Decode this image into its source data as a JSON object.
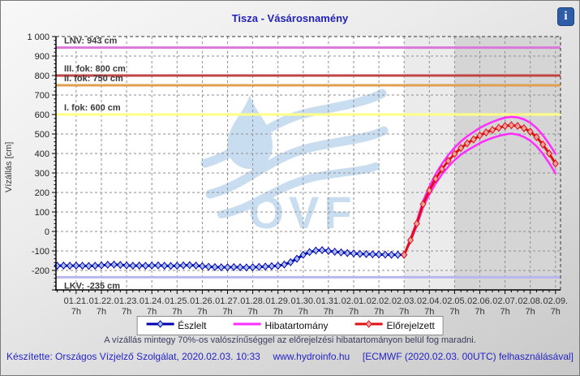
{
  "title": "Tisza - Vásárosnamény",
  "info_button": {
    "glyph": "i"
  },
  "note": "A vízállás mintegy 70%-os valószínűséggel az előrejelzési hibatartományon belül fog maradni.",
  "footer": {
    "left": "Készítette: Országos Vízjelző Szolgálat, 2020.02.03. 10:33",
    "center": "www.hydroinfo.hu",
    "right": "[ECMWF (2020.02.03. 00UTC) felhasználásával]"
  },
  "legend": [
    {
      "label": "Észlelt",
      "color": "#0000b4",
      "marker": true,
      "marker_fill": "#a8c0e8"
    },
    {
      "label": "Hibatartomány",
      "color": "#ff2bff",
      "marker": false,
      "marker_fill": ""
    },
    {
      "label": "Előrejelzett",
      "color": "#dd1111",
      "marker": true,
      "marker_fill": "#f4a0a0"
    }
  ],
  "watermark_text": "OVF",
  "colors": {
    "grid": "#8f8f8f",
    "plot_bg": "#ffffff",
    "title_blue": "#2222bb",
    "footer_blue": "#2424c8"
  },
  "chart_data": {
    "type": "line",
    "title": "Tisza - Vásárosnamény",
    "ylabel": "Vízállás [cm]",
    "x_unit": "days relative to 01.21. 07h, 6-hour sampling",
    "x_range": [
      -0.8,
      19.2
    ],
    "y_range": [
      -300,
      1000
    ],
    "grid": true,
    "y_ticks": {
      "values": [
        1000,
        900,
        800,
        700,
        600,
        500,
        400,
        300,
        200,
        100,
        0,
        -100,
        -200
      ],
      "labels": [
        "1 000",
        "900",
        "800",
        "700",
        "600",
        "500",
        "400",
        "300",
        "200",
        "100",
        "0",
        "-100",
        "-200"
      ]
    },
    "day_labels": [
      "01.21.",
      "01.22.",
      "01.23.",
      "01.24.",
      "01.25.",
      "01.26.",
      "01.27.",
      "01.28.",
      "01.29.",
      "01.30.",
      "01.31.",
      "02.01.",
      "02.02.",
      "02.03.",
      "02.04.",
      "02.05.",
      "02.06.",
      "02.07.",
      "02.08.",
      "02.09."
    ],
    "hour_sublabel": "7h",
    "regions": [
      {
        "name": "forecast-near",
        "from_day": 13,
        "to_day": 15,
        "color": "#ebebeb"
      },
      {
        "name": "forecast-far",
        "from_day": 15,
        "to_day": 19.2,
        "color": "#d5d5d5"
      }
    ],
    "reference_lines": [
      {
        "label": "LNV: 943 cm",
        "value": 943,
        "color": "#d878d8",
        "label_below": false
      },
      {
        "label": "III. fok: 800 cm",
        "value": 800,
        "color": "#c24545",
        "label_below": false
      },
      {
        "label": "II. fok: 750 cm",
        "value": 750,
        "color": "#dfa052",
        "label_below": false
      },
      {
        "label": "I. fok: 600 cm",
        "value": 600,
        "color": "#ffff85",
        "label_below": false
      },
      {
        "label": "LKV: -235 cm",
        "value": -235,
        "color": "#b7b7ee",
        "label_below": true
      }
    ],
    "series": [
      {
        "name": "Észlelt",
        "color": "#0000b4",
        "width": 3,
        "marker": true,
        "marker_fill": "#a8c0e8",
        "start_day": -0.75,
        "step_days": 0.25,
        "values": [
          -176,
          -175,
          -176,
          -175,
          -176,
          -177,
          -176,
          -174,
          -171,
          -170,
          -172,
          -174,
          -176,
          -175,
          -176,
          -175,
          -174,
          -176,
          -177,
          -176,
          -174,
          -173,
          -175,
          -178,
          -181,
          -183,
          -184,
          -184,
          -183,
          -184,
          -185,
          -184,
          -182,
          -180,
          -178,
          -176,
          -170,
          -158,
          -140,
          -120,
          -106,
          -98,
          -96,
          -100,
          -104,
          -108,
          -111,
          -113,
          -115,
          -116,
          -117,
          -118,
          -119,
          -120,
          -120,
          -120
        ]
      },
      {
        "name": "Hibatartomány felső",
        "color": "#ff2bff",
        "width": 2.5,
        "marker": false,
        "marker_fill": "",
        "start_day": 13,
        "step_days": 0.25,
        "values": [
          -120,
          -39,
          51,
          156,
          230,
          294,
          347,
          392,
          430,
          462,
          488,
          510,
          531,
          548,
          562,
          574,
          584,
          588,
          585,
          575,
          558,
          531,
          494,
          449,
          398
        ]
      },
      {
        "name": "Hibatartomány alsó",
        "color": "#ff2bff",
        "width": 2.5,
        "marker": false,
        "marker_fill": "",
        "start_day": 13,
        "step_days": 0.25,
        "values": [
          -120,
          -51,
          29,
          124,
          190,
          246,
          293,
          332,
          366,
          394,
          416,
          434,
          453,
          468,
          480,
          490,
          498,
          502,
          497,
          485,
          466,
          437,
          398,
          351,
          298
        ]
      },
      {
        "name": "Előrejelzett",
        "color": "#dd1111",
        "width": 3,
        "marker": true,
        "marker_fill": "#f4a0a0",
        "start_day": 13,
        "step_days": 0.25,
        "values": [
          -120,
          -45,
          40,
          140,
          210,
          270,
          320,
          362,
          398,
          428,
          452,
          472,
          492,
          508,
          521,
          532,
          541,
          545,
          541,
          530,
          512,
          484,
          446,
          400,
          348
        ]
      }
    ],
    "legend_entries": [
      "Észlelt",
      "Hibatartomány",
      "Előrejelzett"
    ],
    "legend_position": "bottom"
  }
}
